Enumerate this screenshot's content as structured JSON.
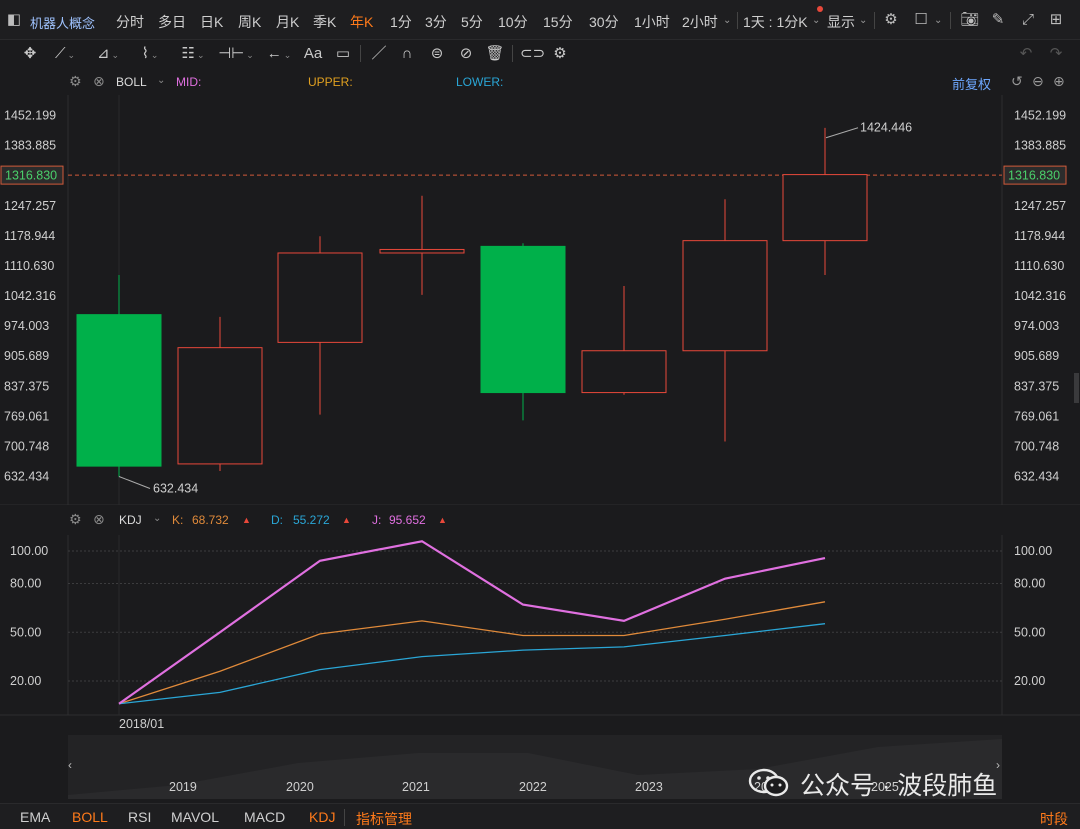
{
  "topbar": {
    "title": "机器人概念",
    "periods": [
      "分时",
      "多日",
      "日K",
      "周K",
      "月K",
      "季K",
      "年K",
      "1分",
      "3分",
      "5分",
      "10分",
      "15分",
      "30分",
      "1小时",
      "2小时"
    ],
    "active_period": "年K",
    "sync_label": "1天 : 1分K",
    "display_label": "显示"
  },
  "boll": {
    "name": "BOLL",
    "mid_label": "MID:",
    "upper_label": "UPPER:",
    "lower_label": "LOWER:",
    "adjust_label": "前复权"
  },
  "kdj": {
    "name": "KDJ",
    "k_label": "K:",
    "k_value": "68.732",
    "d_label": "D:",
    "d_value": "55.272",
    "j_label": "J:",
    "j_value": "95.652"
  },
  "colors": {
    "up": "#e8483a",
    "down": "#00b04a",
    "k_line": "#e08a3a",
    "d_line": "#2aa6d6",
    "j_line": "#e070e0",
    "accent": "#ff7a1a",
    "mid": "#e070e0",
    "upper": "#e0a020",
    "lower": "#2aa6d6"
  },
  "chart_data": [
    {
      "type": "candlestick",
      "title": "",
      "ylim": [
        600,
        1480
      ],
      "y_ticks": [
        "1452.199",
        "1383.885",
        "1316.830",
        "1247.257",
        "1178.944",
        "1110.630",
        "1042.316",
        "974.003",
        "905.689",
        "837.375",
        "769.061",
        "700.748",
        "632.434"
      ],
      "current_price": "1316.830",
      "max_label": "1424.446",
      "min_label": "632.434",
      "candles": [
        {
          "open": 1000,
          "close": 656,
          "high": 1090,
          "low": 632
        },
        {
          "open": 661,
          "close": 925,
          "high": 995,
          "low": 645
        },
        {
          "open": 937,
          "close": 1140,
          "high": 1178,
          "low": 773
        },
        {
          "open": 1140,
          "close": 1148,
          "high": 1270,
          "low": 1045
        },
        {
          "open": 1155,
          "close": 823,
          "high": 1162,
          "low": 760
        },
        {
          "open": 823,
          "close": 918,
          "high": 1065,
          "low": 818
        },
        {
          "open": 918,
          "close": 1168,
          "high": 1262,
          "low": 712
        },
        {
          "open": 1168,
          "close": 1318,
          "high": 1424,
          "low": 1090
        }
      ]
    },
    {
      "type": "line",
      "title": "",
      "ylim": [
        5,
        110
      ],
      "y_ticks": [
        "100.00",
        "80.00",
        "50.00",
        "20.00"
      ],
      "x_label_first": "2018/01",
      "series": [
        {
          "name": "K",
          "values": [
            6,
            26,
            49,
            57,
            48,
            48,
            58,
            68.732
          ]
        },
        {
          "name": "D",
          "values": [
            6,
            13,
            27,
            35,
            39,
            41,
            48,
            55.272
          ]
        },
        {
          "name": "J",
          "values": [
            6,
            50,
            94,
            106,
            67,
            57,
            83,
            95.652
          ]
        }
      ]
    }
  ],
  "navigator": {
    "years": [
      "2019",
      "2020",
      "2021",
      "2022",
      "2023",
      "2024",
      "2025"
    ]
  },
  "bottombar": {
    "items": [
      "EMA",
      "BOLL",
      "RSI",
      "MAVOL",
      "MACD",
      "KDJ",
      "指标管理"
    ],
    "active": [
      "BOLL",
      "KDJ",
      "指标管理"
    ],
    "right_label": "时段"
  },
  "watermark": {
    "text": "公众号 · 波段肺鱼"
  }
}
